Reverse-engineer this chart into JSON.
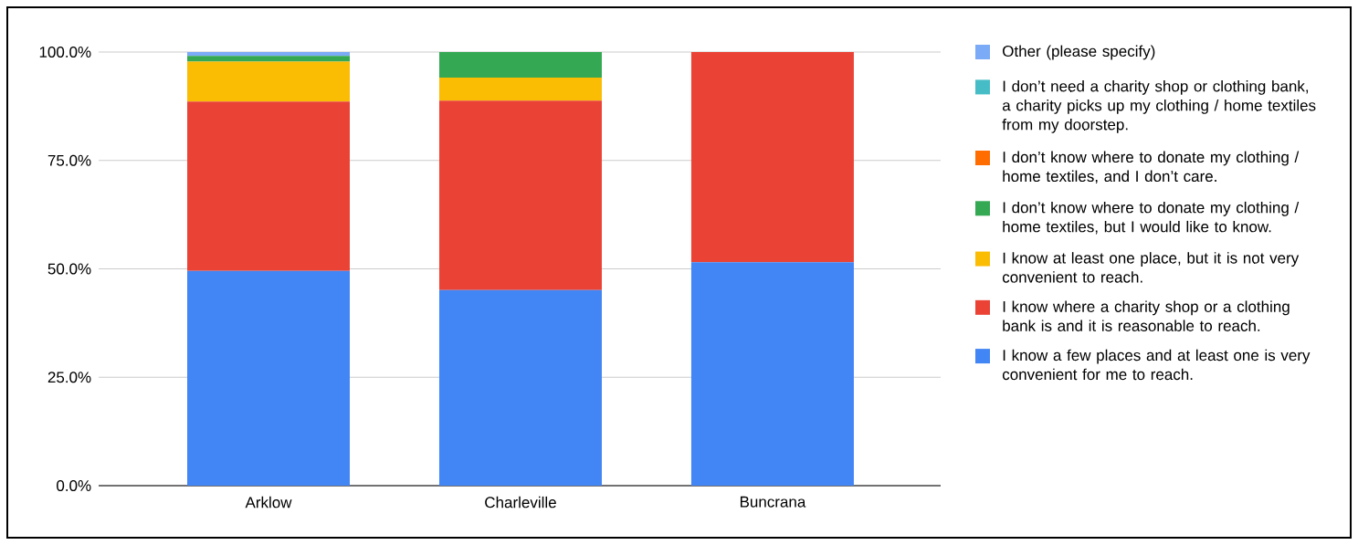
{
  "chart_data": {
    "type": "bar",
    "stacked": true,
    "categories": [
      "Arklow",
      "Charleville",
      "Buncrana"
    ],
    "series": [
      {
        "name": "I know a few places and at least one is very convenient for me to reach.",
        "color": "#4285f4",
        "values": [
          49.5,
          45.1,
          51.5
        ]
      },
      {
        "name": "I know where a charity shop or a clothing bank is and it is reasonable to reach.",
        "color": "#ea4335",
        "values": [
          39.1,
          43.7,
          48.5
        ]
      },
      {
        "name": "I know at least one place, but it is not very convenient to reach.",
        "color": "#fbbc04",
        "values": [
          9.2,
          5.3,
          0
        ]
      },
      {
        "name": "I don’t know where to donate my clothing / home textiles, but I would like to know.",
        "color": "#34a853",
        "values": [
          1.3,
          5.9,
          0
        ]
      },
      {
        "name": "I don’t know where to donate my clothing / home textiles, and I don’t care.",
        "color": "#ff6d01",
        "values": [
          0,
          0,
          0
        ]
      },
      {
        "name": "I don’t need a charity shop or clothing bank, a charity picks up my clothing / home textiles from my doorstep.",
        "color": "#46bdc6",
        "values": [
          0,
          0,
          0
        ]
      },
      {
        "name": "Other (please specify)",
        "color": "#7baaf7",
        "values": [
          0.9,
          0,
          0
        ]
      }
    ],
    "ylim": [
      0,
      100
    ],
    "yticks": [
      {
        "value": 0,
        "label": "0.0%"
      },
      {
        "value": 25,
        "label": "25.0%"
      },
      {
        "value": 50,
        "label": "50.0%"
      },
      {
        "value": 75,
        "label": "75.0%"
      },
      {
        "value": 100,
        "label": "100.0%"
      }
    ],
    "grid": "y",
    "legend": "right"
  }
}
